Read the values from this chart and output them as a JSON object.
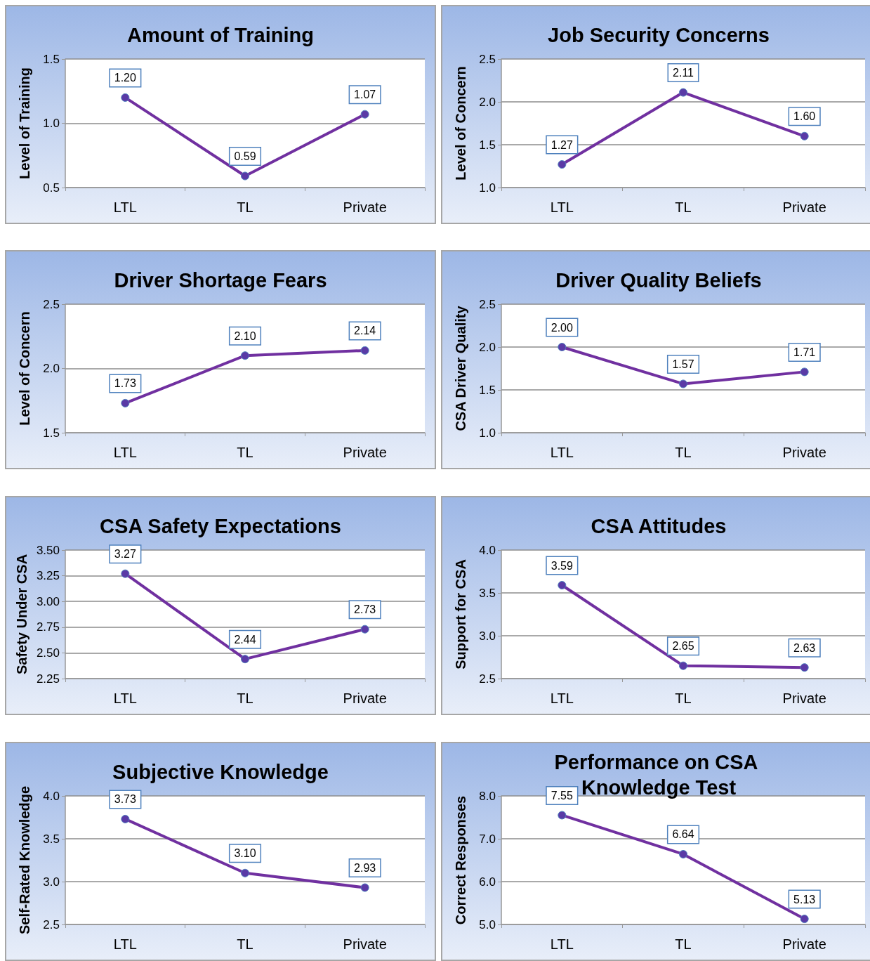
{
  "chart_data": [
    {
      "type": "line",
      "title": "Amount of Training",
      "ylabel": "Level of Training",
      "categories": [
        "LTL",
        "TL",
        "Private"
      ],
      "series": [
        {
          "color": "#7030a0",
          "values": [
            1.2,
            0.59,
            1.07
          ],
          "value_labels": [
            "1.20",
            "0.59",
            "1.07"
          ]
        }
      ],
      "ylim": [
        0.5,
        1.5
      ],
      "yticks": [
        0.5,
        {
          "value": 1,
          "label": "1.0"
        },
        1.5
      ],
      "grid": "y",
      "marker": "circle",
      "line_style": "solid"
    },
    {
      "type": "line",
      "title": "Job Security Concerns",
      "ylabel": "Level of Concern",
      "categories": [
        "LTL",
        "TL",
        "Private"
      ],
      "series": [
        {
          "color": "#7030a0",
          "values": [
            1.27,
            2.11,
            1.6
          ],
          "value_labels": [
            "1.27",
            "2.11",
            "1.60"
          ]
        }
      ],
      "ylim": [
        1,
        2.5
      ],
      "yticks": [
        {
          "value": 1,
          "label": "1.0"
        },
        1.5,
        {
          "value": 2,
          "label": "2.0"
        },
        2.5
      ],
      "grid": "y",
      "marker": "circle",
      "line_style": "solid"
    },
    {
      "type": "line",
      "title": "Driver Shortage Fears",
      "ylabel": "Level of Concern",
      "categories": [
        "LTL",
        "TL",
        "Private"
      ],
      "series": [
        {
          "color": "#7030a0",
          "values": [
            1.73,
            2.1,
            2.14
          ],
          "value_labels": [
            "1.73",
            "2.10",
            "2.14"
          ]
        }
      ],
      "ylim": [
        1.5,
        2.5
      ],
      "yticks": [
        1.5,
        {
          "value": 2,
          "label": "2.0"
        },
        2.5
      ],
      "grid": "y",
      "marker": "circle",
      "line_style": "solid"
    },
    {
      "type": "line",
      "title": "Driver Quality Beliefs",
      "ylabel": "CSA Driver Quality",
      "categories": [
        "LTL",
        "TL",
        "Private"
      ],
      "series": [
        {
          "color": "#7030a0",
          "values": [
            2,
            1.57,
            1.71
          ],
          "value_labels": [
            "2.00",
            "1.57",
            "1.71"
          ]
        }
      ],
      "ylim": [
        1,
        2.5
      ],
      "yticks": [
        {
          "value": 1,
          "label": "1.0"
        },
        1.5,
        {
          "value": 2,
          "label": "2.0"
        },
        2.5
      ],
      "grid": "y",
      "marker": "circle",
      "line_style": "solid"
    },
    {
      "type": "line",
      "title": "CSA Safety Expectations",
      "ylabel": "Safety Under CSA",
      "categories": [
        "LTL",
        "TL",
        "Private"
      ],
      "series": [
        {
          "color": "#7030a0",
          "values": [
            3.27,
            2.44,
            2.73
          ],
          "value_labels": [
            "3.27",
            "2.44",
            "2.73"
          ]
        }
      ],
      "ylim": [
        2.25,
        3.5
      ],
      "yticks": [
        2.25,
        {
          "value": 2.5,
          "label": "2.50"
        },
        2.75,
        {
          "value": 3,
          "label": "3.00"
        },
        3.25,
        {
          "value": 3.5,
          "label": "3.50"
        }
      ],
      "grid": "y",
      "marker": "circle",
      "line_style": "solid"
    },
    {
      "type": "line",
      "title": "CSA Attitudes",
      "ylabel": "Support for CSA",
      "categories": [
        "LTL",
        "TL",
        "Private"
      ],
      "series": [
        {
          "color": "#7030a0",
          "values": [
            3.59,
            2.65,
            2.63
          ],
          "value_labels": [
            "3.59",
            "2.65",
            "2.63"
          ]
        }
      ],
      "ylim": [
        2.5,
        4
      ],
      "yticks": [
        2.5,
        {
          "value": 3,
          "label": "3.0"
        },
        3.5,
        {
          "value": 4,
          "label": "4.0"
        }
      ],
      "grid": "y",
      "marker": "circle",
      "line_style": "solid"
    },
    {
      "type": "line",
      "title": "Subjective Knowledge",
      "ylabel": "Self-Rated Knowledge",
      "categories": [
        "LTL",
        "TL",
        "Private"
      ],
      "series": [
        {
          "color": "#7030a0",
          "values": [
            3.73,
            3.1,
            2.93
          ],
          "value_labels": [
            "3.73",
            "3.10",
            "2.93"
          ]
        }
      ],
      "ylim": [
        2.5,
        4
      ],
      "yticks": [
        2.5,
        {
          "value": 3,
          "label": "3.0"
        },
        3.5,
        {
          "value": 4,
          "label": "4.0"
        }
      ],
      "grid": "y",
      "marker": "circle",
      "line_style": "solid"
    },
    {
      "type": "line",
      "title": "Performance on CSA Knowledge Test",
      "ylabel": "Correct Responses",
      "categories": [
        "LTL",
        "TL",
        "Private"
      ],
      "series": [
        {
          "color": "#7030a0",
          "values": [
            7.55,
            6.64,
            5.13
          ],
          "value_labels": [
            "7.55",
            "6.64",
            "5.13"
          ]
        }
      ],
      "ylim": [
        5,
        8
      ],
      "yticks": [
        {
          "value": 5,
          "label": "5.0"
        },
        {
          "value": 6,
          "label": "6.0"
        },
        {
          "value": 7,
          "label": "7.0"
        },
        {
          "value": 8,
          "label": "8.0"
        }
      ],
      "grid": "y",
      "marker": "circle",
      "line_style": "solid"
    }
  ]
}
